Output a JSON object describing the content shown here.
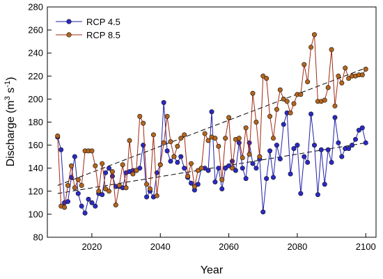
{
  "chart_data": {
    "type": "line",
    "xlabel": "Year",
    "ylabel_main": "Discharge (m",
    "ylabel_sup1": "3",
    "ylabel_mid": " s",
    "ylabel_sup2": "-1",
    "ylabel_end": ")",
    "xlim": [
      2007,
      2103
    ],
    "ylim": [
      80,
      280
    ],
    "xticks": [
      2020,
      2040,
      2060,
      2080,
      2100
    ],
    "yticks": [
      80,
      100,
      120,
      140,
      160,
      180,
      200,
      220,
      240,
      260,
      280
    ],
    "x": [
      2010,
      2011,
      2012,
      2013,
      2014,
      2015,
      2016,
      2017,
      2018,
      2019,
      2020,
      2021,
      2022,
      2023,
      2024,
      2025,
      2026,
      2027,
      2028,
      2029,
      2030,
      2031,
      2032,
      2033,
      2034,
      2035,
      2036,
      2037,
      2038,
      2039,
      2040,
      2041,
      2042,
      2043,
      2044,
      2045,
      2046,
      2047,
      2048,
      2049,
      2050,
      2051,
      2052,
      2053,
      2054,
      2055,
      2056,
      2057,
      2058,
      2059,
      2060,
      2061,
      2062,
      2063,
      2064,
      2065,
      2066,
      2067,
      2068,
      2069,
      2070,
      2071,
      2072,
      2073,
      2074,
      2075,
      2076,
      2077,
      2078,
      2079,
      2080,
      2081,
      2082,
      2083,
      2084,
      2085,
      2086,
      2087,
      2088,
      2089,
      2090,
      2091,
      2092,
      2093,
      2094,
      2095,
      2096,
      2097,
      2098,
      2099,
      2100
    ],
    "legend_position": "top-left",
    "series": [
      {
        "name": "RCP 4.5",
        "color": "#1f1fa8",
        "marker_color": "#2a2ac8",
        "values": [
          167,
          156,
          110,
          111,
          132,
          150,
          118,
          107,
          101,
          113,
          110,
          107,
          118,
          117,
          136,
          140,
          133,
          124,
          124,
          123,
          136,
          137,
          138,
          138,
          140,
          160,
          115,
          120,
          115,
          136,
          143,
          197,
          155,
          146,
          150,
          145,
          150,
          140,
          132,
          127,
          121,
          126,
          140,
          140,
          138,
          189,
          128,
          140,
          122,
          140,
          142,
          146,
          138,
          162,
          140,
          131,
          162,
          144,
          140,
          148,
          102,
          131,
          155,
          132,
          160,
          148,
          178,
          188,
          135,
          157,
          160,
          118,
          150,
          145,
          187,
          160,
          117,
          156,
          126,
          156,
          145,
          184,
          162,
          150,
          157,
          157,
          160,
          165,
          173,
          175,
          162
        ],
        "trend": [
          118,
          162
        ]
      },
      {
        "name": "RCP 8.5",
        "color": "#a02810",
        "marker_color": "#b5651d",
        "values": [
          168,
          107,
          106,
          125,
          142,
          123,
          130,
          125,
          155,
          155,
          155,
          142,
          120,
          144,
          122,
          120,
          137,
          108,
          125,
          143,
          123,
          164,
          135,
          138,
          185,
          179,
          126,
          122,
          169,
          116,
          143,
          162,
          185,
          163,
          150,
          159,
          166,
          169,
          133,
          144,
          124,
          138,
          140,
          170,
          164,
          167,
          166,
          159,
          130,
          166,
          184,
          140,
          165,
          166,
          149,
          175,
          152,
          205,
          180,
          150,
          220,
          218,
          185,
          166,
          191,
          208,
          200,
          198,
          188,
          196,
          204,
          204,
          230,
          215,
          245,
          256,
          198,
          198,
          199,
          210,
          243,
          194,
          220,
          214,
          227,
          218,
          220,
          220,
          221,
          221,
          226
        ],
        "trend": [
          125,
          227
        ]
      }
    ]
  }
}
